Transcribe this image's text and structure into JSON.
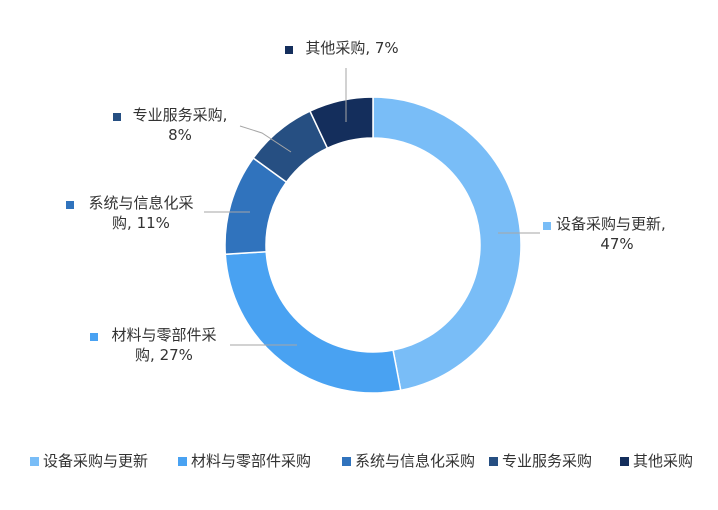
{
  "chart_data": {
    "type": "pie",
    "donut": true,
    "title": "",
    "slices": [
      {
        "name": "设备采购与更新",
        "value": 47,
        "label_lines": [
          "设备采购与更新,",
          "47%"
        ],
        "color": "#79bdf7"
      },
      {
        "name": "材料与零部件采购",
        "value": 27,
        "label_lines": [
          "材料与零部件采",
          "购, 27%"
        ],
        "color": "#49a2f2"
      },
      {
        "name": "系统与信息化采购",
        "value": 11,
        "label_lines": [
          "系统与信息化采",
          "购, 11%"
        ],
        "color": "#3073bd"
      },
      {
        "name": "专业服务采购",
        "value": 8,
        "label_lines": [
          "专业服务采购,",
          "8%"
        ],
        "color": "#264f82"
      },
      {
        "name": "其他采购",
        "value": 7,
        "label_lines": [
          "其他采购, 7%"
        ],
        "color": "#142e5c"
      }
    ],
    "legend_position": "bottom"
  }
}
